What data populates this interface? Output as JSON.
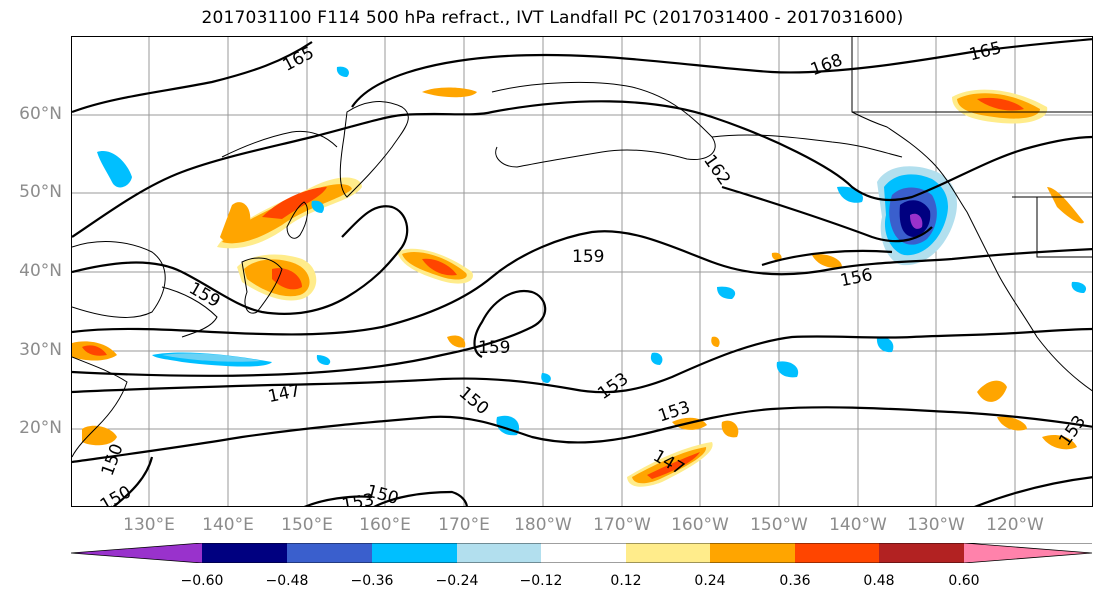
{
  "title": "2017031100 F114 500 hPa refract., IVT Landfall PC (2017031400 - 2017031600)",
  "map": {
    "lat_labels": [
      "60°N",
      "50°N",
      "40°N",
      "30°N",
      "20°N"
    ],
    "lon_labels": [
      "130°E",
      "140°E",
      "150°E",
      "160°E",
      "170°E",
      "180°W",
      "170°W",
      "160°W",
      "150°W",
      "140°W",
      "130°W",
      "120°W"
    ],
    "contour_labels": [
      "165",
      "168",
      "165",
      "162",
      "159",
      "156",
      "159",
      "159",
      "153",
      "153",
      "147",
      "150",
      "147",
      "150",
      "153",
      "150",
      "150",
      "153"
    ]
  },
  "colorbar": {
    "ticks": [
      "−0.60",
      "−0.48",
      "−0.36",
      "−0.24",
      "−0.12",
      "0.12",
      "0.24",
      "0.36",
      "0.48",
      "0.60"
    ],
    "colors": [
      "#9932CC",
      "#000080",
      "#3A5FCD",
      "#00BFFF",
      "#B2DFEE",
      "#FFFFFF",
      "#FFEC8B",
      "#FFA500",
      "#FF4500",
      "#B22222",
      "#FF82AB"
    ]
  }
}
